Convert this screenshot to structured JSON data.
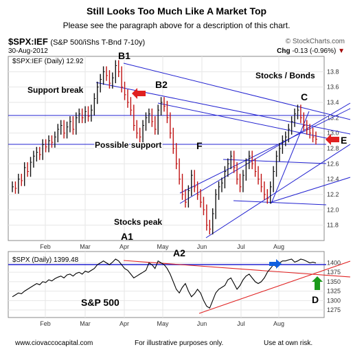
{
  "title": "Still Looks Too Much Like A Market Top",
  "subtitle": "Please see the paragraph above for a description of this chart.",
  "symbol": "$SPX:IEF",
  "symbol_desc": "(S&P 500/iShs T-Bnd 7-10y)",
  "watermark": "© StockCharts.com",
  "date": "30-Aug-2012",
  "change_label": "Chg",
  "change_value": "-0.13 (-0.96%)",
  "footer": {
    "left": "www.ciovaccocapital.com",
    "center": "For illustrative purposes only.",
    "right": "Use at own risk."
  },
  "colors": {
    "annotation_line": "#2020d0",
    "red_line": "#e02020",
    "red_arrow": "#e02020",
    "blue_arrow": "#1060e0",
    "green_arrow": "#1a9a1a"
  },
  "chart_data": [
    {
      "type": "line",
      "name": "$SPX:IEF (Daily) 12.92",
      "legend": "top-left",
      "ylim": [
        11.6,
        14.0
      ],
      "yticks": [
        11.8,
        12.0,
        12.2,
        12.4,
        12.6,
        12.8,
        13.0,
        13.2,
        13.4,
        13.6,
        13.8
      ],
      "months": [
        "Feb",
        "Mar",
        "Apr",
        "May",
        "Jun",
        "Jul",
        "Aug"
      ],
      "values": [
        12.3,
        12.28,
        12.4,
        12.38,
        12.55,
        12.5,
        12.62,
        12.7,
        12.75,
        12.72,
        12.85,
        12.82,
        12.9,
        12.88,
        12.95,
        13.05,
        13.1,
        13.0,
        13.08,
        13.15,
        13.05,
        13.2,
        13.25,
        13.2,
        13.28,
        13.22,
        13.3,
        13.45,
        13.6,
        13.7,
        13.8,
        13.75,
        13.65,
        13.72,
        13.88,
        13.8,
        13.6,
        13.5,
        13.4,
        13.3,
        13.1,
        13.0,
        12.95,
        13.1,
        13.2,
        13.25,
        13.15,
        13.05,
        13.3,
        13.4,
        13.35,
        13.2,
        13.0,
        12.8,
        12.6,
        12.4,
        12.2,
        12.1,
        12.25,
        12.45,
        12.3,
        12.2,
        12.1,
        12.0,
        11.8,
        11.75,
        11.95,
        12.2,
        12.3,
        12.35,
        12.5,
        12.6,
        12.7,
        12.55,
        12.4,
        12.3,
        12.45,
        12.6,
        12.7,
        12.6,
        12.5,
        12.4,
        12.3,
        12.2,
        12.15,
        12.3,
        12.5,
        12.7,
        12.8,
        12.9,
        12.95,
        13.05,
        13.15,
        13.25,
        13.3,
        13.2,
        13.1,
        13.05,
        13.0,
        12.95,
        12.92
      ],
      "annotations": {
        "top_text": "Stocks / Bonds",
        "B1": "B1",
        "B2": "B2",
        "C": "C",
        "E": "E",
        "F": "F",
        "A1": "A1",
        "support_break": "Support break",
        "possible_support": "Possible support",
        "stocks_peak": "Stocks peak"
      }
    },
    {
      "type": "line",
      "name": "$SPX (Daily) 1399.48",
      "legend": "top-left",
      "ylim": [
        1255,
        1430
      ],
      "yticks": [
        1275,
        1300,
        1325,
        1350,
        1375,
        1400
      ],
      "months": [
        "Feb",
        "Mar",
        "Apr",
        "May",
        "Jun",
        "Jul",
        "Aug"
      ],
      "values": [
        1310,
        1315,
        1320,
        1318,
        1325,
        1330,
        1335,
        1340,
        1345,
        1342,
        1350,
        1348,
        1355,
        1352,
        1358,
        1362,
        1365,
        1360,
        1368,
        1370,
        1365,
        1372,
        1375,
        1370,
        1378,
        1375,
        1380,
        1385,
        1395,
        1400,
        1405,
        1400,
        1395,
        1402,
        1410,
        1405,
        1395,
        1385,
        1380,
        1370,
        1360,
        1365,
        1370,
        1375,
        1380,
        1400,
        1395,
        1385,
        1405,
        1400,
        1395,
        1385,
        1370,
        1350,
        1330,
        1320,
        1335,
        1345,
        1325,
        1310,
        1318,
        1330,
        1320,
        1300,
        1285,
        1280,
        1300,
        1320,
        1330,
        1335,
        1340,
        1355,
        1360,
        1345,
        1330,
        1340,
        1355,
        1365,
        1370,
        1360,
        1350,
        1345,
        1350,
        1360,
        1375,
        1385,
        1395,
        1390,
        1400,
        1405,
        1405,
        1408,
        1410,
        1402,
        1405,
        1410,
        1408,
        1404,
        1400,
        1402,
        1399.48
      ],
      "annotations": {
        "A2": "A2",
        "D": "D",
        "sp500": "S&P 500"
      }
    }
  ]
}
